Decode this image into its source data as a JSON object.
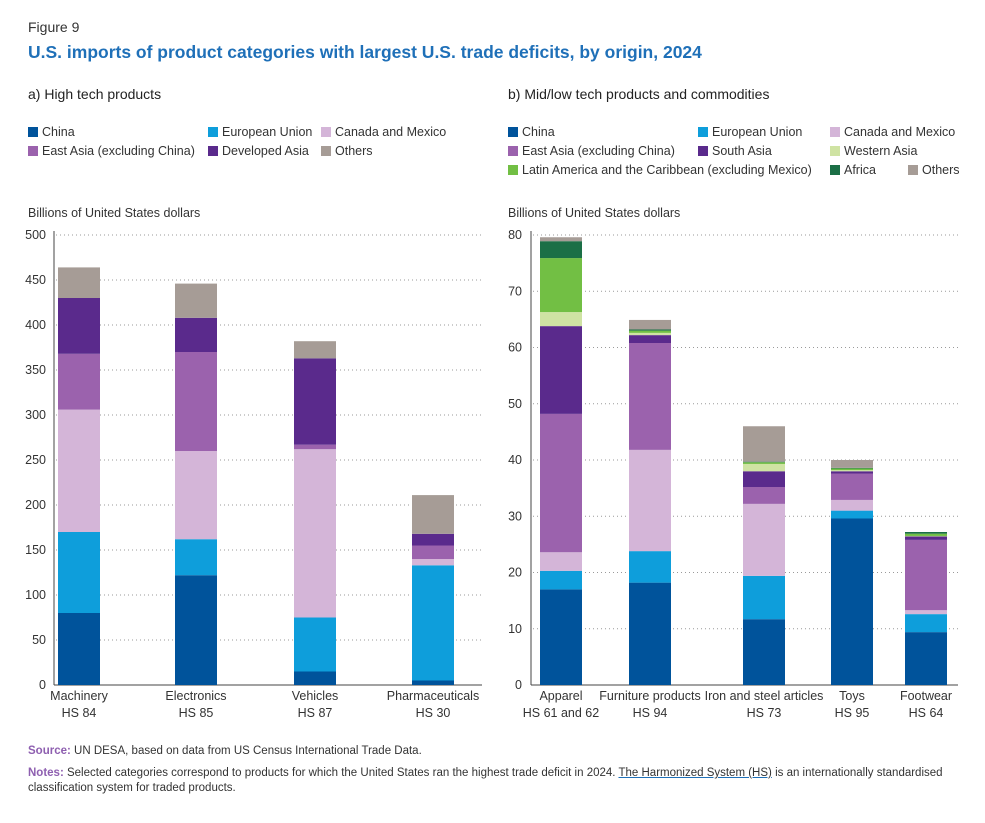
{
  "figure_label": "Figure 9",
  "title": "U.S. imports of product categories with largest U.S. trade deficits, by origin, 2024",
  "colors": {
    "China": "#00539b",
    "European Union": "#0e9edb",
    "Canada and Mexico": "#d4b5d8",
    "East Asia (excluding China)": "#9b62ad",
    "Developed Asia": "#5a2a8c",
    "South Asia": "#5a2a8c",
    "Others": "#a69c96",
    "Western Asia": "#cfe3a3",
    "Latin America and the Caribbean (excluding Mexico)": "#72bf44",
    "Africa": "#1b6f46"
  },
  "panel_a": {
    "title": "a) High tech products",
    "unit": "Billions of United States dollars",
    "legend": [
      "China",
      "European Union",
      "Canada and Mexico",
      "East Asia (excluding China)",
      "Developed Asia",
      "Others"
    ]
  },
  "panel_b": {
    "title": "b) Mid/low tech products and commodities",
    "unit": "Billions of United States dollars",
    "legend": [
      "China",
      "European Union",
      "Canada and Mexico",
      "East Asia (excluding China)",
      "South Asia",
      "Western Asia",
      "Latin America and the Caribbean (excluding Mexico)",
      "Africa",
      "Others"
    ]
  },
  "chart_data": [
    {
      "type": "bar",
      "stacked": true,
      "title": "a) High tech products",
      "ylabel": "Billions of United States dollars",
      "ylim": [
        0,
        500
      ],
      "yticks": [
        0,
        50,
        100,
        150,
        200,
        250,
        300,
        350,
        400,
        450,
        500
      ],
      "categories": [
        "Machinery",
        "Electronics",
        "Vehicles",
        "Pharmaceuticals"
      ],
      "category_codes": [
        "HS 84",
        "HS 85",
        "HS 87",
        "HS 30"
      ],
      "series": [
        {
          "name": "China",
          "values": [
            80,
            122,
            15,
            5
          ]
        },
        {
          "name": "European Union",
          "values": [
            90,
            40,
            60,
            128
          ]
        },
        {
          "name": "Canada and Mexico",
          "values": [
            136,
            98,
            187,
            7
          ]
        },
        {
          "name": "East Asia (excluding China)",
          "values": [
            62,
            110,
            5,
            15
          ]
        },
        {
          "name": "Developed Asia",
          "values": [
            62,
            38,
            96,
            13
          ]
        },
        {
          "name": "Others",
          "values": [
            34,
            38,
            19,
            43
          ]
        }
      ]
    },
    {
      "type": "bar",
      "stacked": true,
      "title": "b) Mid/low tech products and commodities",
      "ylabel": "Billions of United States dollars",
      "ylim": [
        0,
        80
      ],
      "yticks": [
        0,
        10,
        20,
        30,
        40,
        50,
        60,
        70,
        80
      ],
      "categories": [
        "Apparel",
        "Furniture products",
        "Iron and steel articles",
        "Toys",
        "Footwear"
      ],
      "category_codes": [
        "HS 61 and 62",
        "HS 94",
        "HS 73",
        "HS 95",
        "HS 64"
      ],
      "series": [
        {
          "name": "China",
          "values": [
            17,
            18.2,
            11.7,
            29.6,
            9.4
          ]
        },
        {
          "name": "European Union",
          "values": [
            3.3,
            5.6,
            7.7,
            1.4,
            3.2
          ]
        },
        {
          "name": "Canada and Mexico",
          "values": [
            3.3,
            18,
            12.8,
            1.9,
            0.7
          ]
        },
        {
          "name": "East Asia (excluding China)",
          "values": [
            24.6,
            19,
            3,
            4.7,
            12.5
          ]
        },
        {
          "name": "South Asia",
          "values": [
            15.6,
            1.4,
            2.8,
            0.4,
            0.6
          ]
        },
        {
          "name": "Western Asia",
          "values": [
            2.5,
            0.4,
            1.3,
            0.2,
            0.1
          ]
        },
        {
          "name": "Latin America and the Caribbean (excluding Mexico)",
          "values": [
            9.6,
            0.4,
            0.3,
            0.3,
            0.4
          ]
        },
        {
          "name": "Africa",
          "values": [
            3,
            0.2,
            0.1,
            0.1,
            0.3
          ]
        },
        {
          "name": "Others",
          "values": [
            0.7,
            1.7,
            6.3,
            1.4,
            0
          ]
        }
      ]
    }
  ],
  "source_label": "Source:",
  "source_text": "UN DESA, based on data from US Census International Trade Data.",
  "notes_label": "Notes:",
  "notes_text_1": "Selected categories correspond to products for which the United States ran the highest trade deficit in 2024.",
  "notes_link": "The Harmonized System (HS)",
  "notes_text_2": "is an internationally standardised classification system for traded products."
}
